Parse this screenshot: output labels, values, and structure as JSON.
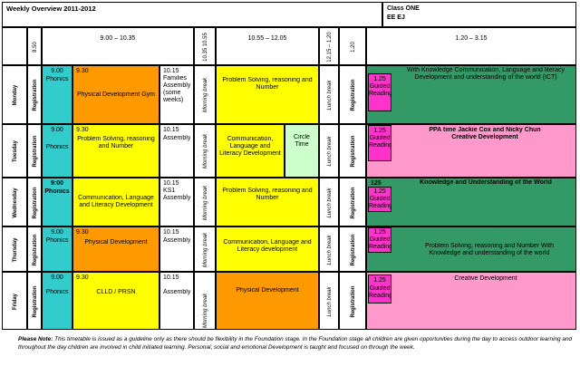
{
  "header": {
    "title": "Weekly Overview 2011-2012",
    "class_line1": "Class ONE",
    "class_line2": "EE  EJ"
  },
  "times": {
    "t850": "8.50",
    "t900": "9.00 – 10.35",
    "t1035": "10.35 10.55",
    "t1055": "10.55 – 12.05",
    "t1215": "12.15 – 1.20",
    "t120": "1.20",
    "t120_315": "1.20 – 3.15"
  },
  "days": [
    "Monday",
    "Tuesday",
    "Wednesday",
    "Thursday",
    "Friday"
  ],
  "labels": {
    "registration": "Registration",
    "morning_break": "Morning break",
    "lunch_break": "Lunch break",
    "phonics": "Phonics",
    "time_930": "9.30",
    "time_1015": "10.15",
    "time_900": "9.00",
    "time_125": "1.25",
    "guided_reading": "Guided Reading",
    "assembly": "Assembly"
  },
  "monday": {
    "am1": "Physical Development Gym",
    "assembly": "Families Assembly (some weeks)",
    "am2": "Problem Solving, reasoning and Number",
    "pm": "With Knowledge Communication, Language and literacy Development and understanding of the world (ICT)"
  },
  "tuesday": {
    "am1": "Problem Solving, reasoning and Number",
    "am2": "Communication, Language and Literacy Development",
    "circle": "Circle Time",
    "pm": "PPA time Jackie Cox and Nicky Chun Creative Development"
  },
  "wednesday": {
    "phonics_time": "9:00",
    "am1": "Communication, Language and Literacy Development",
    "assembly": "KS1 Assembly",
    "am2": "Problem Solving, reasoning and Number",
    "pm_time": "125",
    "pm": "Knowledge and Understanding of the World"
  },
  "thursday": {
    "am1": "Physical Development",
    "am2": "Communication, Language and Literacy development",
    "pm": "Problem Solving, reasoning and Number With Knowledge and understanding of the world"
  },
  "friday": {
    "am1": "CLLD / PRSN",
    "assembly": "Assembly",
    "am2": "Physical Development",
    "pm": "Creative Development"
  },
  "footer": {
    "note_label": "Please Note:",
    "note": "This timetable is issued as a guideline only as there should be flexibility in the Foundation stage. In the Foundation stage all children are given opportunities during the day to access outdoor learning and throughout the day children are involved in child initiated learning. Personal, social and emotional Development is taught and focused on through the week."
  }
}
